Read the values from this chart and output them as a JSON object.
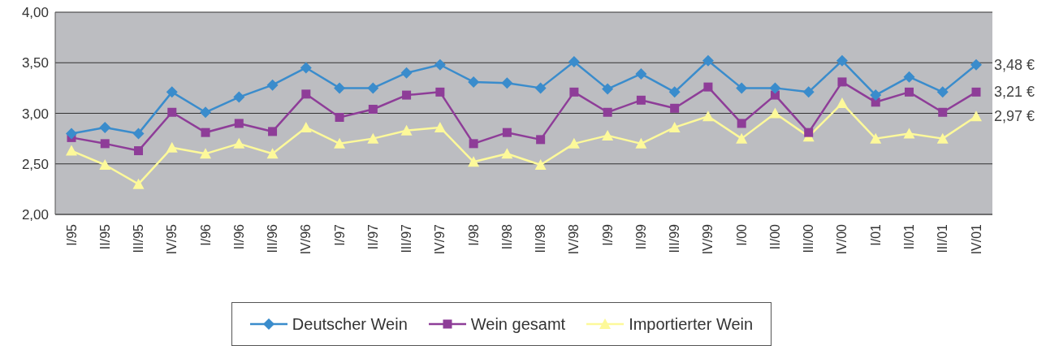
{
  "chart_data": {
    "type": "line",
    "categories": [
      "I/95",
      "II/95",
      "III/95",
      "IV/95",
      "I/96",
      "II/96",
      "III/96",
      "IV/96",
      "I/97",
      "II/97",
      "III/97",
      "IV/97",
      "I/98",
      "II/98",
      "III/98",
      "IV/98",
      "I/99",
      "II/99",
      "III/99",
      "IV/99",
      "I/00",
      "II/00",
      "III/00",
      "IV/00",
      "I/01",
      "II/01",
      "III/01",
      "IV/01"
    ],
    "series": [
      {
        "name": "Deutscher Wein",
        "color": "#3a8ccc",
        "marker": "diamond",
        "values": [
          2.8,
          2.86,
          2.8,
          3.21,
          3.01,
          3.16,
          3.28,
          3.45,
          3.25,
          3.25,
          3.4,
          3.48,
          3.31,
          3.3,
          3.25,
          3.51,
          3.24,
          3.39,
          3.21,
          3.52,
          3.25,
          3.25,
          3.21,
          3.52,
          3.18,
          3.36,
          3.21,
          3.48
        ]
      },
      {
        "name": "Wein gesamt",
        "color": "#8e3d98",
        "marker": "square",
        "values": [
          2.76,
          2.7,
          2.63,
          3.01,
          2.81,
          2.9,
          2.82,
          3.19,
          2.96,
          3.04,
          3.18,
          3.21,
          2.7,
          2.81,
          2.74,
          3.21,
          3.01,
          3.13,
          3.05,
          3.26,
          2.9,
          3.18,
          2.81,
          3.31,
          3.11,
          3.21,
          3.01,
          3.21
        ]
      },
      {
        "name": "Importierter Wein",
        "color": "#fdf99a",
        "marker": "triangle",
        "values": [
          2.63,
          2.49,
          2.3,
          2.66,
          2.6,
          2.7,
          2.6,
          2.86,
          2.7,
          2.75,
          2.83,
          2.86,
          2.52,
          2.6,
          2.49,
          2.7,
          2.78,
          2.7,
          2.86,
          2.97,
          2.75,
          3.0,
          2.77,
          3.1,
          2.75,
          2.8,
          2.75,
          2.97
        ]
      }
    ],
    "ylim": [
      2,
      4
    ],
    "yticks": [
      {
        "value": 2,
        "label": "2,00"
      },
      {
        "value": 2.5,
        "label": "2,50"
      },
      {
        "value": 3,
        "label": "3,00"
      },
      {
        "value": 3.5,
        "label": "3,50"
      },
      {
        "value": 4,
        "label": "4,00"
      }
    ],
    "grid": "y",
    "legend": "bottom",
    "annotations": [
      {
        "text": "3,48 €",
        "x": "IV/01",
        "y": 3.48
      },
      {
        "text": "3,21 €",
        "x": "IV/01",
        "y": 3.21
      },
      {
        "text": "2,97 €",
        "x": "IV/01",
        "y": 2.97
      }
    ]
  }
}
